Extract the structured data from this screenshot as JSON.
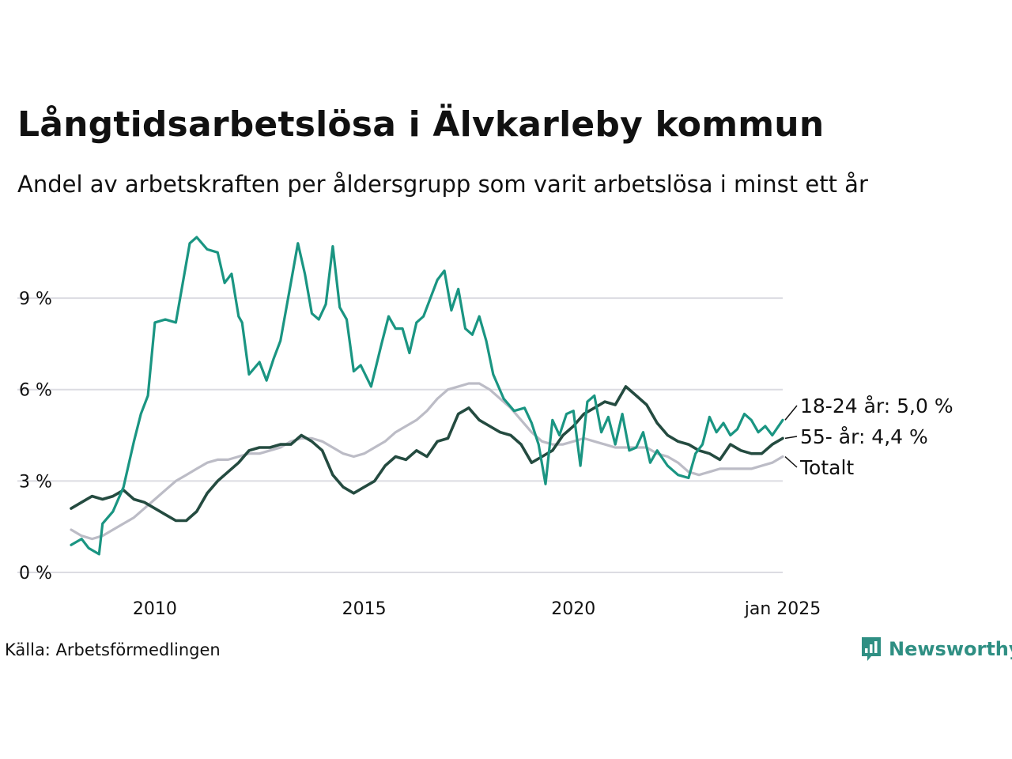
{
  "header": {
    "title": "Långtidsarbetslösa i Älvkarleby kommun",
    "subtitle": "Andel av arbetskraften per åldersgrupp som varit arbetslösa i minst ett år"
  },
  "footer": {
    "source": "Källa: Arbetsförmedlingen",
    "brand": "Newsworthy",
    "brand_icon": "newsworthy-logo-icon"
  },
  "colors": {
    "youth": "#1a9582",
    "senior": "#244b40",
    "total": "#bcbcc6",
    "grid": "#dcdce2",
    "text": "#111111",
    "brand": "#2f8f83"
  },
  "chart_data": {
    "type": "line",
    "x_axis": {
      "min": "2008-01",
      "max": "2025-01",
      "ticks": [
        "2010",
        "2015",
        "2020",
        "jan 2025"
      ]
    },
    "y_axis": {
      "min": 0,
      "max": 11,
      "ticks": [
        "0 %",
        "3 %",
        "6 %",
        "9 %"
      ],
      "tick_values": [
        0,
        3,
        6,
        9
      ]
    },
    "grid": "horizontal",
    "legend": "end-labels",
    "series": [
      {
        "name": "18-24 år",
        "end_label": "18-24 år: 5,0 %",
        "color": "#1a9582",
        "points": [
          [
            "2008-01",
            0.9
          ],
          [
            "2008-04",
            1.1
          ],
          [
            "2008-06",
            0.8
          ],
          [
            "2008-09",
            0.6
          ],
          [
            "2008-10",
            1.6
          ],
          [
            "2009-01",
            2.0
          ],
          [
            "2009-04",
            2.8
          ],
          [
            "2009-07",
            4.3
          ],
          [
            "2009-09",
            5.2
          ],
          [
            "2009-11",
            5.8
          ],
          [
            "2010-01",
            8.2
          ],
          [
            "2010-04",
            8.3
          ],
          [
            "2010-07",
            8.2
          ],
          [
            "2010-09",
            9.5
          ],
          [
            "2010-11",
            10.8
          ],
          [
            "2011-01",
            11.0
          ],
          [
            "2011-04",
            10.6
          ],
          [
            "2011-07",
            10.5
          ],
          [
            "2011-09",
            9.5
          ],
          [
            "2011-11",
            9.8
          ],
          [
            "2012-01",
            8.4
          ],
          [
            "2012-02",
            8.2
          ],
          [
            "2012-04",
            6.5
          ],
          [
            "2012-07",
            6.9
          ],
          [
            "2012-09",
            6.3
          ],
          [
            "2012-11",
            7.0
          ],
          [
            "2013-01",
            7.6
          ],
          [
            "2013-04",
            9.5
          ],
          [
            "2013-06",
            10.8
          ],
          [
            "2013-08",
            9.8
          ],
          [
            "2013-10",
            8.5
          ],
          [
            "2013-12",
            8.3
          ],
          [
            "2014-02",
            8.8
          ],
          [
            "2014-04",
            10.7
          ],
          [
            "2014-06",
            8.7
          ],
          [
            "2014-08",
            8.3
          ],
          [
            "2014-10",
            6.6
          ],
          [
            "2014-12",
            6.8
          ],
          [
            "2015-03",
            6.1
          ],
          [
            "2015-06",
            7.5
          ],
          [
            "2015-08",
            8.4
          ],
          [
            "2015-10",
            8.0
          ],
          [
            "2015-12",
            8.0
          ],
          [
            "2016-02",
            7.2
          ],
          [
            "2016-04",
            8.2
          ],
          [
            "2016-06",
            8.4
          ],
          [
            "2016-08",
            9.0
          ],
          [
            "2016-10",
            9.6
          ],
          [
            "2016-12",
            9.9
          ],
          [
            "2017-02",
            8.6
          ],
          [
            "2017-04",
            9.3
          ],
          [
            "2017-06",
            8.0
          ],
          [
            "2017-08",
            7.8
          ],
          [
            "2017-10",
            8.4
          ],
          [
            "2017-12",
            7.6
          ],
          [
            "2018-02",
            6.5
          ],
          [
            "2018-05",
            5.7
          ],
          [
            "2018-08",
            5.3
          ],
          [
            "2018-11",
            5.4
          ],
          [
            "2019-01",
            4.9
          ],
          [
            "2019-03",
            4.2
          ],
          [
            "2019-05",
            2.9
          ],
          [
            "2019-07",
            5.0
          ],
          [
            "2019-09",
            4.5
          ],
          [
            "2019-11",
            5.2
          ],
          [
            "2020-01",
            5.3
          ],
          [
            "2020-03",
            3.5
          ],
          [
            "2020-05",
            5.6
          ],
          [
            "2020-07",
            5.8
          ],
          [
            "2020-09",
            4.6
          ],
          [
            "2020-11",
            5.1
          ],
          [
            "2021-01",
            4.2
          ],
          [
            "2021-03",
            5.2
          ],
          [
            "2021-05",
            4.0
          ],
          [
            "2021-07",
            4.1
          ],
          [
            "2021-09",
            4.6
          ],
          [
            "2021-11",
            3.6
          ],
          [
            "2022-01",
            4.0
          ],
          [
            "2022-04",
            3.5
          ],
          [
            "2022-07",
            3.2
          ],
          [
            "2022-10",
            3.1
          ],
          [
            "2022-12",
            3.9
          ],
          [
            "2023-02",
            4.2
          ],
          [
            "2023-04",
            5.1
          ],
          [
            "2023-06",
            4.6
          ],
          [
            "2023-08",
            4.9
          ],
          [
            "2023-10",
            4.5
          ],
          [
            "2023-12",
            4.7
          ],
          [
            "2024-02",
            5.2
          ],
          [
            "2024-04",
            5.0
          ],
          [
            "2024-06",
            4.6
          ],
          [
            "2024-08",
            4.8
          ],
          [
            "2024-10",
            4.5
          ],
          [
            "2025-01",
            5.0
          ]
        ]
      },
      {
        "name": "55- år",
        "end_label": "55- år: 4,4 %",
        "color": "#244b40",
        "points": [
          [
            "2008-01",
            2.1
          ],
          [
            "2008-04",
            2.3
          ],
          [
            "2008-07",
            2.5
          ],
          [
            "2008-10",
            2.4
          ],
          [
            "2009-01",
            2.5
          ],
          [
            "2009-04",
            2.7
          ],
          [
            "2009-07",
            2.4
          ],
          [
            "2009-10",
            2.3
          ],
          [
            "2010-01",
            2.1
          ],
          [
            "2010-04",
            1.9
          ],
          [
            "2010-07",
            1.7
          ],
          [
            "2010-10",
            1.7
          ],
          [
            "2011-01",
            2.0
          ],
          [
            "2011-04",
            2.6
          ],
          [
            "2011-07",
            3.0
          ],
          [
            "2011-10",
            3.3
          ],
          [
            "2012-01",
            3.6
          ],
          [
            "2012-04",
            4.0
          ],
          [
            "2012-07",
            4.1
          ],
          [
            "2012-10",
            4.1
          ],
          [
            "2013-01",
            4.2
          ],
          [
            "2013-04",
            4.2
          ],
          [
            "2013-07",
            4.5
          ],
          [
            "2013-10",
            4.3
          ],
          [
            "2014-01",
            4.0
          ],
          [
            "2014-04",
            3.2
          ],
          [
            "2014-07",
            2.8
          ],
          [
            "2014-10",
            2.6
          ],
          [
            "2015-01",
            2.8
          ],
          [
            "2015-04",
            3.0
          ],
          [
            "2015-07",
            3.5
          ],
          [
            "2015-10",
            3.8
          ],
          [
            "2016-01",
            3.7
          ],
          [
            "2016-04",
            4.0
          ],
          [
            "2016-07",
            3.8
          ],
          [
            "2016-10",
            4.3
          ],
          [
            "2017-01",
            4.4
          ],
          [
            "2017-04",
            5.2
          ],
          [
            "2017-07",
            5.4
          ],
          [
            "2017-10",
            5.0
          ],
          [
            "2018-01",
            4.8
          ],
          [
            "2018-04",
            4.6
          ],
          [
            "2018-07",
            4.5
          ],
          [
            "2018-10",
            4.2
          ],
          [
            "2019-01",
            3.6
          ],
          [
            "2019-04",
            3.8
          ],
          [
            "2019-07",
            4.0
          ],
          [
            "2019-10",
            4.5
          ],
          [
            "2020-01",
            4.8
          ],
          [
            "2020-04",
            5.2
          ],
          [
            "2020-07",
            5.4
          ],
          [
            "2020-10",
            5.6
          ],
          [
            "2021-01",
            5.5
          ],
          [
            "2021-04",
            6.1
          ],
          [
            "2021-07",
            5.8
          ],
          [
            "2021-10",
            5.5
          ],
          [
            "2022-01",
            4.9
          ],
          [
            "2022-04",
            4.5
          ],
          [
            "2022-07",
            4.3
          ],
          [
            "2022-10",
            4.2
          ],
          [
            "2023-01",
            4.0
          ],
          [
            "2023-04",
            3.9
          ],
          [
            "2023-07",
            3.7
          ],
          [
            "2023-10",
            4.2
          ],
          [
            "2024-01",
            4.0
          ],
          [
            "2024-04",
            3.9
          ],
          [
            "2024-07",
            3.9
          ],
          [
            "2024-10",
            4.2
          ],
          [
            "2025-01",
            4.4
          ]
        ]
      },
      {
        "name": "Totalt",
        "end_label": "Totalt",
        "color": "#bcbcc6",
        "points": [
          [
            "2008-01",
            1.4
          ],
          [
            "2008-04",
            1.2
          ],
          [
            "2008-07",
            1.1
          ],
          [
            "2008-10",
            1.2
          ],
          [
            "2009-01",
            1.4
          ],
          [
            "2009-04",
            1.6
          ],
          [
            "2009-07",
            1.8
          ],
          [
            "2009-10",
            2.1
          ],
          [
            "2010-01",
            2.4
          ],
          [
            "2010-04",
            2.7
          ],
          [
            "2010-07",
            3.0
          ],
          [
            "2010-10",
            3.2
          ],
          [
            "2011-01",
            3.4
          ],
          [
            "2011-04",
            3.6
          ],
          [
            "2011-07",
            3.7
          ],
          [
            "2011-10",
            3.7
          ],
          [
            "2012-01",
            3.8
          ],
          [
            "2012-04",
            3.9
          ],
          [
            "2012-07",
            3.9
          ],
          [
            "2012-10",
            4.0
          ],
          [
            "2013-01",
            4.1
          ],
          [
            "2013-04",
            4.3
          ],
          [
            "2013-07",
            4.4
          ],
          [
            "2013-10",
            4.4
          ],
          [
            "2014-01",
            4.3
          ],
          [
            "2014-04",
            4.1
          ],
          [
            "2014-07",
            3.9
          ],
          [
            "2014-10",
            3.8
          ],
          [
            "2015-01",
            3.9
          ],
          [
            "2015-04",
            4.1
          ],
          [
            "2015-07",
            4.3
          ],
          [
            "2015-10",
            4.6
          ],
          [
            "2016-01",
            4.8
          ],
          [
            "2016-04",
            5.0
          ],
          [
            "2016-07",
            5.3
          ],
          [
            "2016-10",
            5.7
          ],
          [
            "2017-01",
            6.0
          ],
          [
            "2017-04",
            6.1
          ],
          [
            "2017-07",
            6.2
          ],
          [
            "2017-10",
            6.2
          ],
          [
            "2018-01",
            6.0
          ],
          [
            "2018-04",
            5.7
          ],
          [
            "2018-07",
            5.4
          ],
          [
            "2018-10",
            5.0
          ],
          [
            "2019-01",
            4.6
          ],
          [
            "2019-04",
            4.3
          ],
          [
            "2019-07",
            4.2
          ],
          [
            "2019-10",
            4.2
          ],
          [
            "2020-01",
            4.3
          ],
          [
            "2020-04",
            4.4
          ],
          [
            "2020-07",
            4.3
          ],
          [
            "2020-10",
            4.2
          ],
          [
            "2021-01",
            4.1
          ],
          [
            "2021-04",
            4.1
          ],
          [
            "2021-07",
            4.1
          ],
          [
            "2021-10",
            4.1
          ],
          [
            "2022-01",
            3.9
          ],
          [
            "2022-04",
            3.8
          ],
          [
            "2022-07",
            3.6
          ],
          [
            "2022-10",
            3.3
          ],
          [
            "2023-01",
            3.2
          ],
          [
            "2023-04",
            3.3
          ],
          [
            "2023-07",
            3.4
          ],
          [
            "2023-10",
            3.4
          ],
          [
            "2024-01",
            3.4
          ],
          [
            "2024-04",
            3.4
          ],
          [
            "2024-07",
            3.5
          ],
          [
            "2024-10",
            3.6
          ],
          [
            "2025-01",
            3.8
          ]
        ]
      }
    ]
  }
}
